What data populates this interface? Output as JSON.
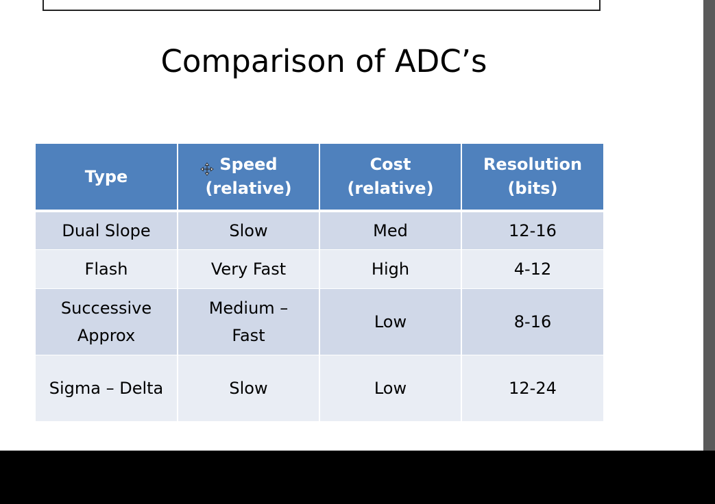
{
  "slide": {
    "title": "Comparison of ADC’s"
  },
  "table": {
    "headers": [
      [
        "Type"
      ],
      [
        "Speed",
        "(relative)"
      ],
      [
        "Cost",
        "(relative)"
      ],
      [
        "Resolution",
        "(bits)"
      ]
    ],
    "rows": [
      [
        [
          "Dual Slope"
        ],
        [
          "Slow"
        ],
        [
          "Med"
        ],
        [
          "12-16"
        ]
      ],
      [
        [
          "Flash"
        ],
        [
          "Very Fast"
        ],
        [
          "High"
        ],
        [
          "4-12"
        ]
      ],
      [
        [
          "Successive",
          "Approx"
        ],
        [
          "Medium –",
          "Fast"
        ],
        [
          "Low"
        ],
        [
          "8-16"
        ]
      ],
      [
        [
          "Sigma – Delta"
        ],
        [
          "Slow"
        ],
        [
          "Low"
        ],
        [
          "12-24"
        ]
      ]
    ]
  },
  "colors": {
    "header_fill": "#4f81bd",
    "row_fill_odd": "#d0d8e8",
    "row_fill_even": "#e9edf4"
  },
  "icons": {
    "cursor": "move-cursor-icon"
  }
}
